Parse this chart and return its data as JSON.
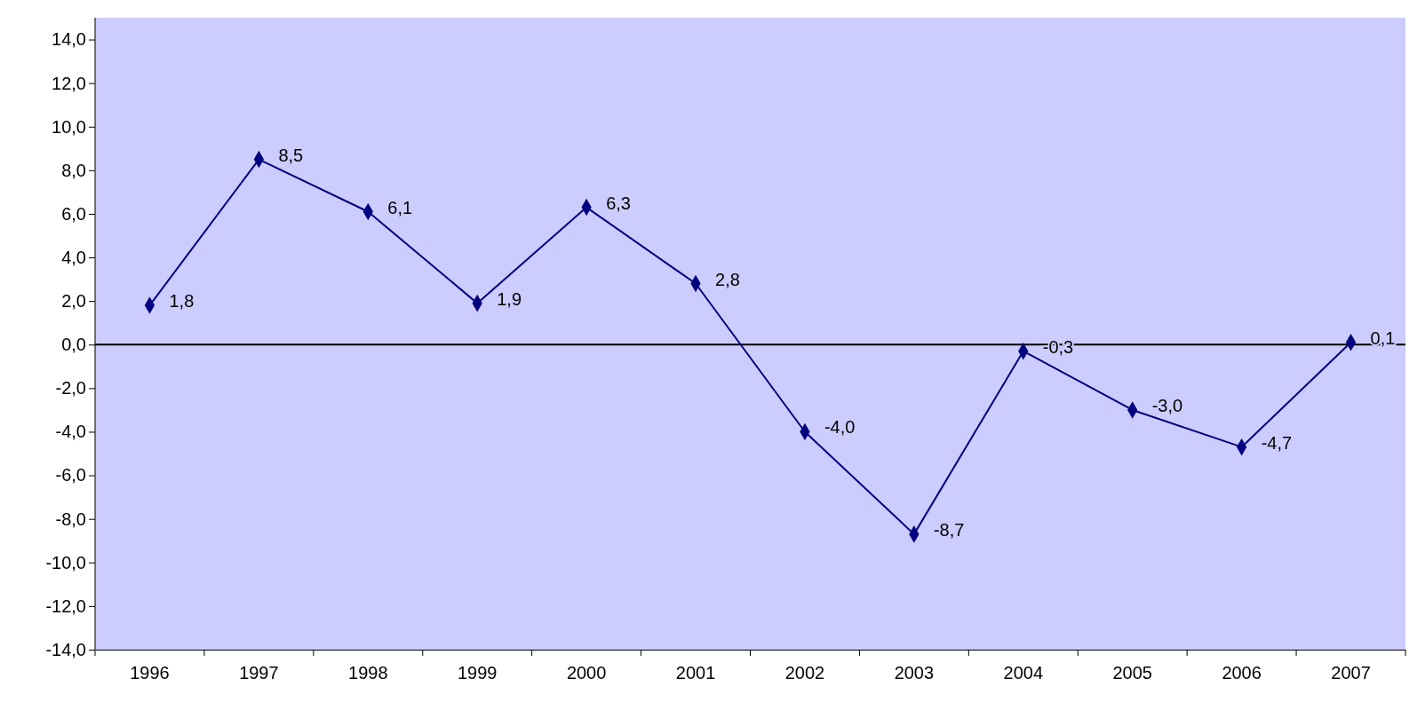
{
  "chart_data": {
    "type": "line",
    "categories": [
      "1996",
      "1997",
      "1998",
      "1999",
      "2000",
      "2001",
      "2002",
      "2003",
      "2004",
      "2005",
      "2006",
      "2007"
    ],
    "series": [
      {
        "color": "#000080",
        "values": [
          1.8,
          8.5,
          6.1,
          1.9,
          6.3,
          2.8,
          -4.0,
          -8.7,
          -0.3,
          -3.0,
          -4.7,
          0.1
        ],
        "value_labels": [
          "1,8",
          "8,5",
          "6,1",
          "1,9",
          "6,3",
          "2,8",
          "-4,0",
          "-8,7",
          "-0,3",
          "-3,0",
          "-4,7",
          "0,1"
        ]
      }
    ],
    "ylim": [
      -14,
      15
    ],
    "yticks": [
      {
        "value": -14,
        "label": "-14,0"
      },
      {
        "value": -12,
        "label": "-12,0"
      },
      {
        "value": -10,
        "label": "-10,0"
      },
      {
        "value": -8,
        "label": "-8,0"
      },
      {
        "value": -6,
        "label": "-6,0"
      },
      {
        "value": -4,
        "label": "-4,0"
      },
      {
        "value": -2,
        "label": "-2,0"
      },
      {
        "value": 0,
        "label": "0,0"
      },
      {
        "value": 2,
        "label": "2,0"
      },
      {
        "value": 4,
        "label": "4,0"
      },
      {
        "value": 6,
        "label": "6,0"
      },
      {
        "value": 8,
        "label": "8,0"
      },
      {
        "value": 10,
        "label": "10,0"
      },
      {
        "value": 12,
        "label": "12,0"
      },
      {
        "value": 14,
        "label": "14,0"
      }
    ],
    "ref_lines": [
      {
        "axis": "y",
        "value": 0,
        "color": "#000000"
      }
    ],
    "marker": "diamond",
    "line_style": "solid",
    "grid": false
  }
}
